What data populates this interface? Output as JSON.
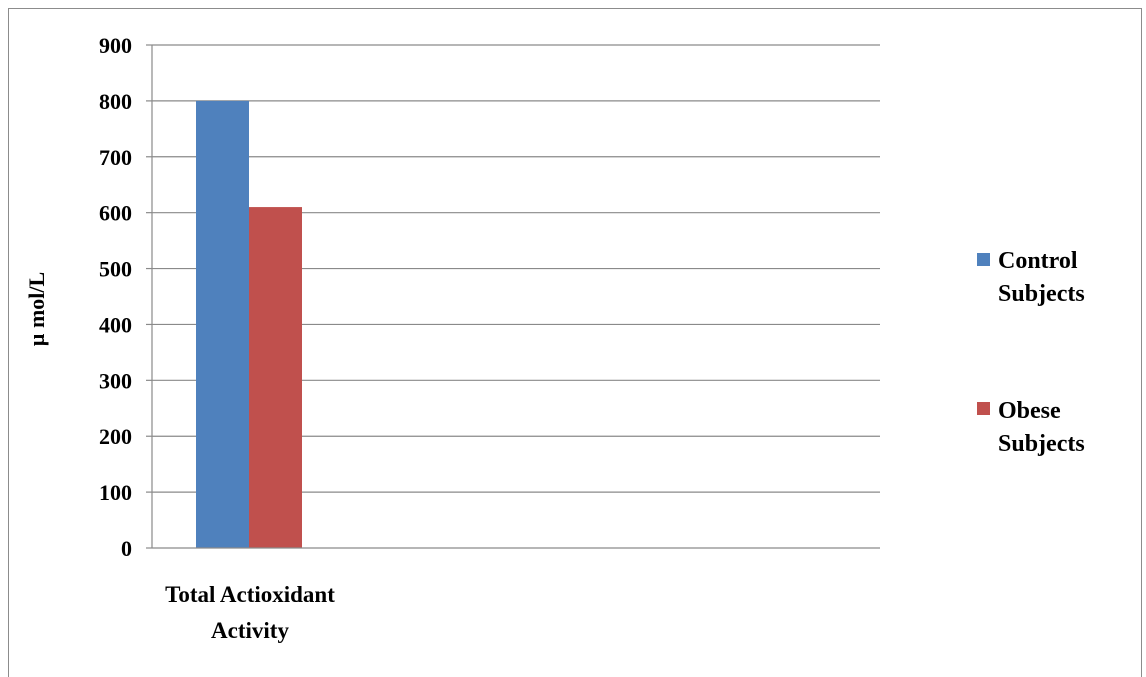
{
  "chart_data": {
    "type": "bar",
    "categories": [
      "Total Actioxidant Activity"
    ],
    "category_label_lines": [
      [
        "Total Actioxidant",
        "Activity"
      ]
    ],
    "series": [
      {
        "name": "Control Subjects",
        "name_lines": [
          "Control",
          "Subjects"
        ],
        "values": [
          800
        ],
        "color": "#4f81bd"
      },
      {
        "name": "Obese Subjects",
        "name_lines": [
          "Obese",
          "Subjects"
        ],
        "values": [
          610
        ],
        "color": "#c0504d"
      }
    ],
    "title": "",
    "xlabel": "",
    "ylabel": "µ mol/L",
    "ylim": [
      0,
      900
    ],
    "yticks": [
      0,
      100,
      200,
      300,
      400,
      500,
      600,
      700,
      800,
      900
    ],
    "grid": true,
    "legend_position": "right"
  }
}
